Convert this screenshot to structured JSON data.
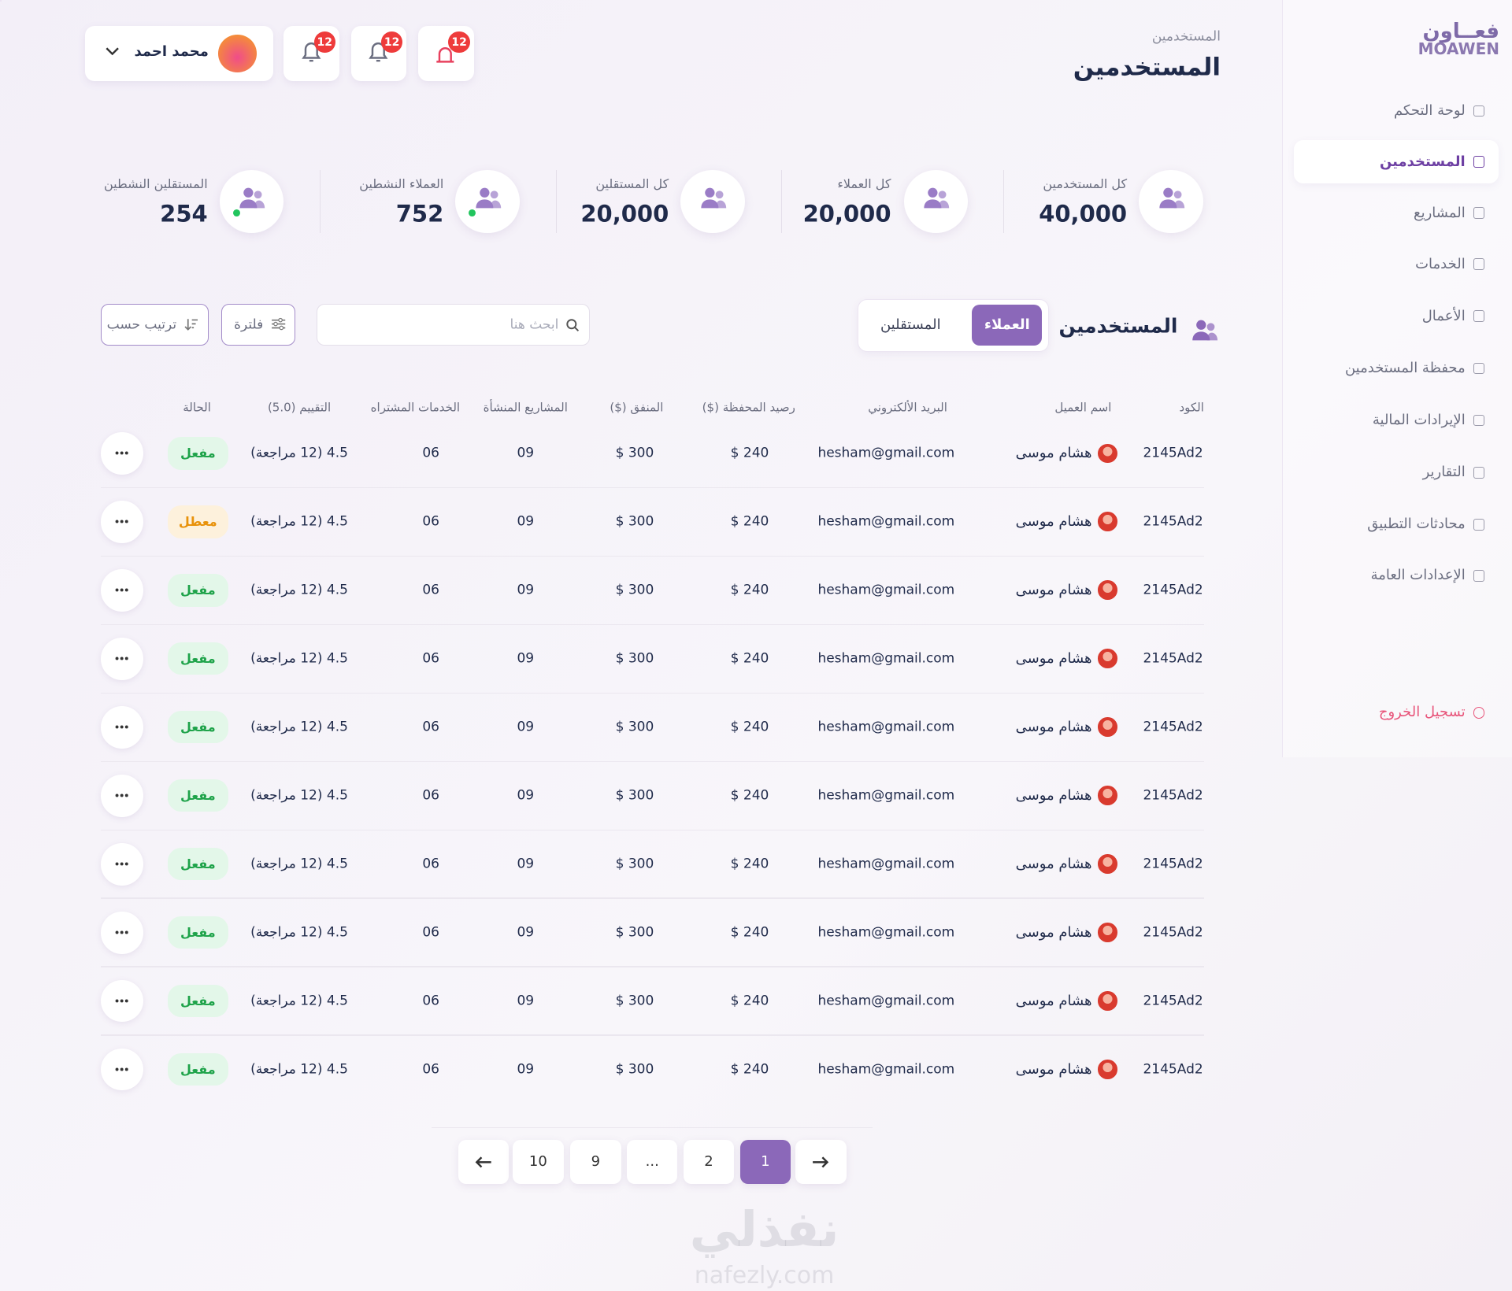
{
  "sidebar": {
    "logo": {
      "arabic": "فعــاون",
      "latin": "MOAWEN"
    },
    "nav": [
      "لوحة التحكم",
      "المستخدمين",
      "المشاريع",
      "الخدمات",
      "الأعمال",
      "محفظة المستخدمين",
      "الإيرادات المالية",
      "التقارير",
      "محادثات التطبيق",
      "الإعدادات العامة"
    ],
    "logout": "تسجيل الخروج"
  },
  "header": {
    "breadcrumb": "المستخدمين",
    "title": "المستخدمين",
    "user_name": "محمد احمد",
    "badges": [
      "12",
      "12",
      "12"
    ]
  },
  "stats": [
    {
      "label": "كل المستخدمين",
      "value": "40,000"
    },
    {
      "label": "كل العملاء",
      "value": "20,000"
    },
    {
      "label": "كل المستقلين",
      "value": "20,000"
    },
    {
      "label": "العملاء النشطين",
      "value": "752"
    },
    {
      "label": "المستقلين النشطين",
      "value": "254"
    }
  ],
  "table": {
    "title": "المستخدمين",
    "tabs": [
      "العملاء",
      "المستقلين"
    ],
    "search_placeholder": "ابحث هنا",
    "filter": "فلترة",
    "sort": "ترتيب حسب",
    "columns": [
      "الكود",
      "اسم العميل",
      "البريد الألكتروني",
      "رصيد المحفظة ($)",
      "المنفق ($)",
      "المشاريع المنشأة",
      "الخدمات المشتراه",
      "التقييم (5.0)",
      "الحالة"
    ],
    "rows": [
      [
        "2145Ad2",
        "هشام موسى",
        "hesham@gmail.com",
        "$ 240",
        "$ 300",
        "09",
        "06",
        "4.5 (12 مراجعة)",
        "مفعل"
      ],
      [
        "2145Ad2",
        "هشام موسى",
        "hesham@gmail.com",
        "$ 240",
        "$ 300",
        "09",
        "06",
        "4.5 (12 مراجعة)",
        "معطل"
      ],
      [
        "2145Ad2",
        "هشام موسى",
        "hesham@gmail.com",
        "$ 240",
        "$ 300",
        "09",
        "06",
        "4.5 (12 مراجعة)",
        "مفعل"
      ],
      [
        "2145Ad2",
        "هشام موسى",
        "hesham@gmail.com",
        "$ 240",
        "$ 300",
        "09",
        "06",
        "4.5 (12 مراجعة)",
        "مفعل"
      ],
      [
        "2145Ad2",
        "هشام موسى",
        "hesham@gmail.com",
        "$ 240",
        "$ 300",
        "09",
        "06",
        "4.5 (12 مراجعة)",
        "مفعل"
      ],
      [
        "2145Ad2",
        "هشام موسى",
        "hesham@gmail.com",
        "$ 240",
        "$ 300",
        "09",
        "06",
        "4.5 (12 مراجعة)",
        "مفعل"
      ],
      [
        "2145Ad2",
        "هشام موسى",
        "hesham@gmail.com",
        "$ 240",
        "$ 300",
        "09",
        "06",
        "4.5 (12 مراجعة)",
        "مفعل"
      ],
      [
        "2145Ad2",
        "هشام موسى",
        "hesham@gmail.com",
        "$ 240",
        "$ 300",
        "09",
        "06",
        "4.5 (12 مراجعة)",
        "مفعل"
      ],
      [
        "2145Ad2",
        "هشام موسى",
        "hesham@gmail.com",
        "$ 240",
        "$ 300",
        "09",
        "06",
        "4.5 (12 مراجعة)",
        "مفعل"
      ],
      [
        "2145Ad2",
        "هشام موسى",
        "hesham@gmail.com",
        "$ 240",
        "$ 300",
        "09",
        "06",
        "4.5 (12 مراجعة)",
        "مفعل"
      ]
    ]
  },
  "pagination": {
    "pages": [
      "10",
      "9",
      "...",
      "2",
      "1"
    ]
  },
  "watermark": {
    "arabic": "نفذلي",
    "latin": "nafezly.com"
  }
}
